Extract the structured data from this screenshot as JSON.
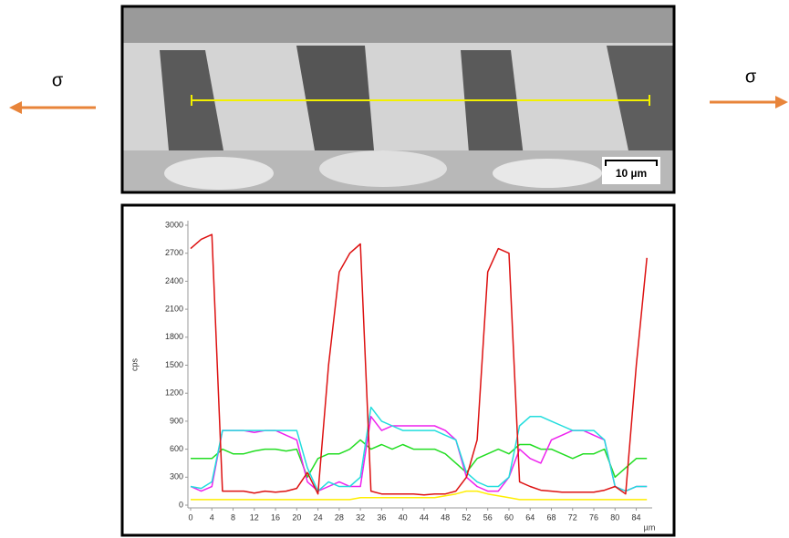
{
  "figure": {
    "sigma_left": "σ",
    "sigma_right": "σ",
    "scale_bar": "10 µm"
  },
  "chart_data": {
    "type": "line",
    "y_label": "cps",
    "x_label": "µm",
    "x": [
      0,
      2,
      4,
      6,
      8,
      10,
      12,
      14,
      16,
      18,
      20,
      22,
      24,
      26,
      28,
      30,
      32,
      34,
      36,
      38,
      40,
      42,
      44,
      46,
      48,
      50,
      52,
      54,
      56,
      58,
      60,
      62,
      64,
      66,
      68,
      70,
      72,
      74,
      76,
      78,
      80,
      82,
      84,
      86
    ],
    "series": [
      {
        "color": "#ffee00",
        "values": [
          60,
          60,
          60,
          60,
          60,
          60,
          60,
          60,
          60,
          60,
          60,
          60,
          60,
          60,
          60,
          60,
          80,
          80,
          80,
          80,
          80,
          80,
          80,
          80,
          100,
          120,
          150,
          150,
          120,
          100,
          80,
          60,
          60,
          60,
          60,
          60,
          60,
          60,
          60,
          60,
          60,
          60,
          60,
          60
        ]
      },
      {
        "color": "#22dd22",
        "values": [
          500,
          500,
          500,
          600,
          550,
          550,
          580,
          600,
          600,
          580,
          600,
          300,
          500,
          550,
          550,
          600,
          700,
          600,
          650,
          600,
          650,
          600,
          600,
          600,
          550,
          450,
          350,
          500,
          550,
          600,
          550,
          650,
          650,
          600,
          600,
          550,
          500,
          550,
          550,
          600,
          300,
          400,
          500,
          500
        ]
      },
      {
        "color": "#ee22ee",
        "values": [
          200,
          150,
          200,
          800,
          800,
          800,
          780,
          800,
          800,
          750,
          700,
          250,
          150,
          200,
          250,
          200,
          200,
          950,
          800,
          850,
          850,
          850,
          850,
          850,
          800,
          700,
          300,
          200,
          150,
          150,
          300,
          600,
          500,
          450,
          700,
          750,
          800,
          800,
          750,
          700,
          200,
          150,
          200,
          200
        ]
      },
      {
        "color": "#22dddd",
        "values": [
          200,
          180,
          250,
          800,
          800,
          800,
          800,
          800,
          800,
          800,
          800,
          400,
          150,
          250,
          200,
          200,
          300,
          1050,
          900,
          850,
          800,
          800,
          800,
          800,
          750,
          700,
          350,
          250,
          200,
          200,
          300,
          850,
          950,
          950,
          900,
          850,
          800,
          800,
          800,
          700,
          200,
          150,
          200,
          200
        ]
      },
      {
        "color": "#dd1111",
        "values": [
          2750,
          2850,
          2900,
          150,
          150,
          150,
          130,
          150,
          140,
          150,
          180,
          350,
          120,
          1500,
          2500,
          2700,
          2800,
          150,
          120,
          120,
          120,
          120,
          110,
          120,
          120,
          150,
          300,
          700,
          2500,
          2750,
          2700,
          250,
          200,
          160,
          150,
          140,
          140,
          140,
          140,
          160,
          200,
          120,
          1500,
          2650
        ]
      }
    ],
    "xlim": [
      0,
      87
    ],
    "xticks": [
      0,
      4,
      8,
      12,
      16,
      20,
      24,
      28,
      32,
      36,
      40,
      44,
      48,
      52,
      56,
      60,
      64,
      68,
      72,
      76,
      80,
      84
    ],
    "ylim": [
      0,
      3000
    ],
    "yticks": [
      0,
      300,
      600,
      900,
      1200,
      1500,
      1800,
      2100,
      2400,
      2700,
      3000
    ],
    "grid": false
  }
}
